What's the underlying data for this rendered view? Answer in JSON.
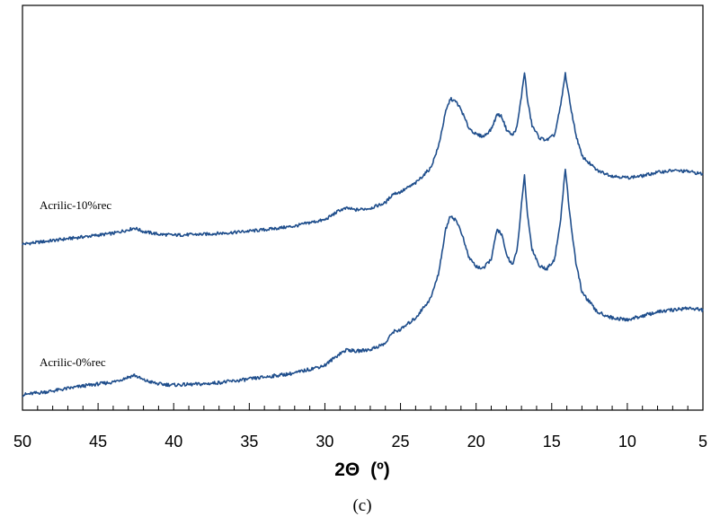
{
  "chart_data": {
    "type": "line",
    "xlabel_main": "2Θ",
    "xlabel_unit": "(º)",
    "panel_label": "(c)",
    "x_ticks": [
      "50",
      "45",
      "40",
      "35",
      "30",
      "25",
      "20",
      "15",
      "10",
      "5"
    ],
    "xlim": [
      50,
      5
    ],
    "x_reversed": true,
    "ylabel": "",
    "y_ticks_shown": false,
    "grid": false,
    "line_color": "#1f4e8c",
    "series": [
      {
        "name": "Acrilic-10%rec",
        "points": [
          [
            50,
            0.0
          ],
          [
            48,
            0.04
          ],
          [
            46,
            0.08
          ],
          [
            44,
            0.12
          ],
          [
            43,
            0.16
          ],
          [
            42.6,
            0.18
          ],
          [
            42,
            0.14
          ],
          [
            41,
            0.11
          ],
          [
            40,
            0.1
          ],
          [
            38,
            0.11
          ],
          [
            36,
            0.13
          ],
          [
            34,
            0.16
          ],
          [
            32,
            0.2
          ],
          [
            31,
            0.24
          ],
          [
            30,
            0.27
          ],
          [
            29,
            0.38
          ],
          [
            28.5,
            0.4
          ],
          [
            28,
            0.38
          ],
          [
            27,
            0.4
          ],
          [
            26,
            0.46
          ],
          [
            25.5,
            0.56
          ],
          [
            25,
            0.58
          ],
          [
            24,
            0.68
          ],
          [
            23,
            0.85
          ],
          [
            22.5,
            1.08
          ],
          [
            22,
            1.48
          ],
          [
            21.7,
            1.62
          ],
          [
            21.3,
            1.58
          ],
          [
            21,
            1.5
          ],
          [
            20.5,
            1.3
          ],
          [
            20,
            1.22
          ],
          [
            19.5,
            1.2
          ],
          [
            19,
            1.28
          ],
          [
            18.6,
            1.45
          ],
          [
            18.3,
            1.42
          ],
          [
            18,
            1.28
          ],
          [
            17.6,
            1.21
          ],
          [
            17.3,
            1.3
          ],
          [
            17.0,
            1.65
          ],
          [
            16.8,
            1.92
          ],
          [
            16.6,
            1.6
          ],
          [
            16.3,
            1.32
          ],
          [
            15.8,
            1.18
          ],
          [
            15.3,
            1.16
          ],
          [
            14.8,
            1.22
          ],
          [
            14.4,
            1.55
          ],
          [
            14.1,
            1.9
          ],
          [
            13.8,
            1.58
          ],
          [
            13.4,
            1.22
          ],
          [
            13,
            0.98
          ],
          [
            12,
            0.82
          ],
          [
            11,
            0.76
          ],
          [
            10,
            0.74
          ],
          [
            9,
            0.76
          ],
          [
            8,
            0.8
          ],
          [
            7,
            0.82
          ],
          [
            6,
            0.81
          ],
          [
            5,
            0.78
          ]
        ]
      },
      {
        "name": "Acrilic-0%rec",
        "points": [
          [
            50,
            0.0
          ],
          [
            48,
            0.04
          ],
          [
            46,
            0.09
          ],
          [
            44,
            0.13
          ],
          [
            43,
            0.18
          ],
          [
            42.6,
            0.2
          ],
          [
            42,
            0.15
          ],
          [
            41,
            0.11
          ],
          [
            40,
            0.1
          ],
          [
            38,
            0.11
          ],
          [
            36,
            0.14
          ],
          [
            34,
            0.18
          ],
          [
            32,
            0.22
          ],
          [
            31,
            0.26
          ],
          [
            30,
            0.3
          ],
          [
            29,
            0.42
          ],
          [
            28.5,
            0.46
          ],
          [
            28,
            0.44
          ],
          [
            27,
            0.46
          ],
          [
            26,
            0.52
          ],
          [
            25.5,
            0.64
          ],
          [
            25,
            0.66
          ],
          [
            24,
            0.78
          ],
          [
            23,
            0.98
          ],
          [
            22.5,
            1.22
          ],
          [
            22,
            1.68
          ],
          [
            21.7,
            1.82
          ],
          [
            21.3,
            1.76
          ],
          [
            21,
            1.66
          ],
          [
            20.5,
            1.4
          ],
          [
            20,
            1.3
          ],
          [
            19.5,
            1.28
          ],
          [
            19,
            1.38
          ],
          [
            18.6,
            1.68
          ],
          [
            18.3,
            1.62
          ],
          [
            18,
            1.42
          ],
          [
            17.6,
            1.32
          ],
          [
            17.3,
            1.45
          ],
          [
            17.0,
            1.92
          ],
          [
            16.8,
            2.22
          ],
          [
            16.6,
            1.82
          ],
          [
            16.3,
            1.48
          ],
          [
            15.8,
            1.3
          ],
          [
            15.3,
            1.28
          ],
          [
            14.8,
            1.38
          ],
          [
            14.4,
            1.78
          ],
          [
            14.1,
            2.3
          ],
          [
            13.8,
            1.82
          ],
          [
            13.4,
            1.34
          ],
          [
            13,
            1.04
          ],
          [
            12,
            0.84
          ],
          [
            11,
            0.78
          ],
          [
            10,
            0.76
          ],
          [
            9,
            0.8
          ],
          [
            8,
            0.84
          ],
          [
            7,
            0.86
          ],
          [
            6,
            0.88
          ],
          [
            5,
            0.86
          ]
        ]
      }
    ]
  }
}
